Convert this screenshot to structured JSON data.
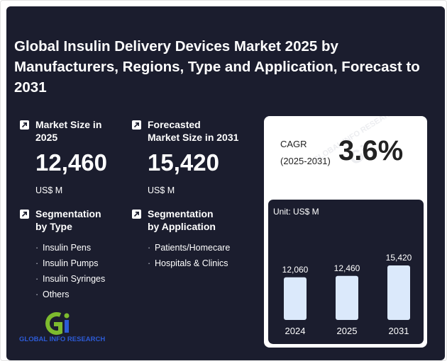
{
  "title": "Global Insulin Delivery Devices Market 2025 by Manufacturers, Regions, Type and Application, Forecast to 2031",
  "stats": [
    {
      "label_line1": "Market Size in",
      "label_line2": "2025",
      "value": "12,460",
      "unit": "US$ M",
      "icon": "arrow-up-right-icon"
    },
    {
      "label_line1": "Forecasted",
      "label_line2": "Market Size in 2031",
      "value": "15,420",
      "unit": "US$ M",
      "icon": "arrow-up-right-icon"
    }
  ],
  "segmentation": [
    {
      "label_line1": "Segmentation",
      "label_line2": "by Type",
      "items": [
        "Insulin Pens",
        "Insulin Pumps",
        "Insulin Syringes",
        "Others"
      ]
    },
    {
      "label_line1": "Segmentation",
      "label_line2": "by Application",
      "items": [
        "Patients/Homecare",
        "Hospitals & Clinics"
      ]
    }
  ],
  "cagr": {
    "label_line1": "CAGR",
    "label_line2": "(2025-2031)",
    "value": "3.6%"
  },
  "logo": {
    "text": "GLOBAL INFO RESEARCH",
    "mark": "Gi"
  },
  "watermark": "GLOBAL INFO RESEARCH",
  "colors": {
    "background": "#1b1d2e",
    "bar": "#dbe9fb",
    "logo_green": "#7dbb2e",
    "logo_blue": "#2d5bd6"
  },
  "chart_data": {
    "type": "bar",
    "unit_label": "Unit: US$ M",
    "categories": [
      "2024",
      "2025",
      "2031"
    ],
    "values": [
      12060,
      12460,
      15420
    ],
    "value_labels": [
      "12,060",
      "12,460",
      "15,420"
    ],
    "ylim": [
      0,
      15420
    ]
  }
}
